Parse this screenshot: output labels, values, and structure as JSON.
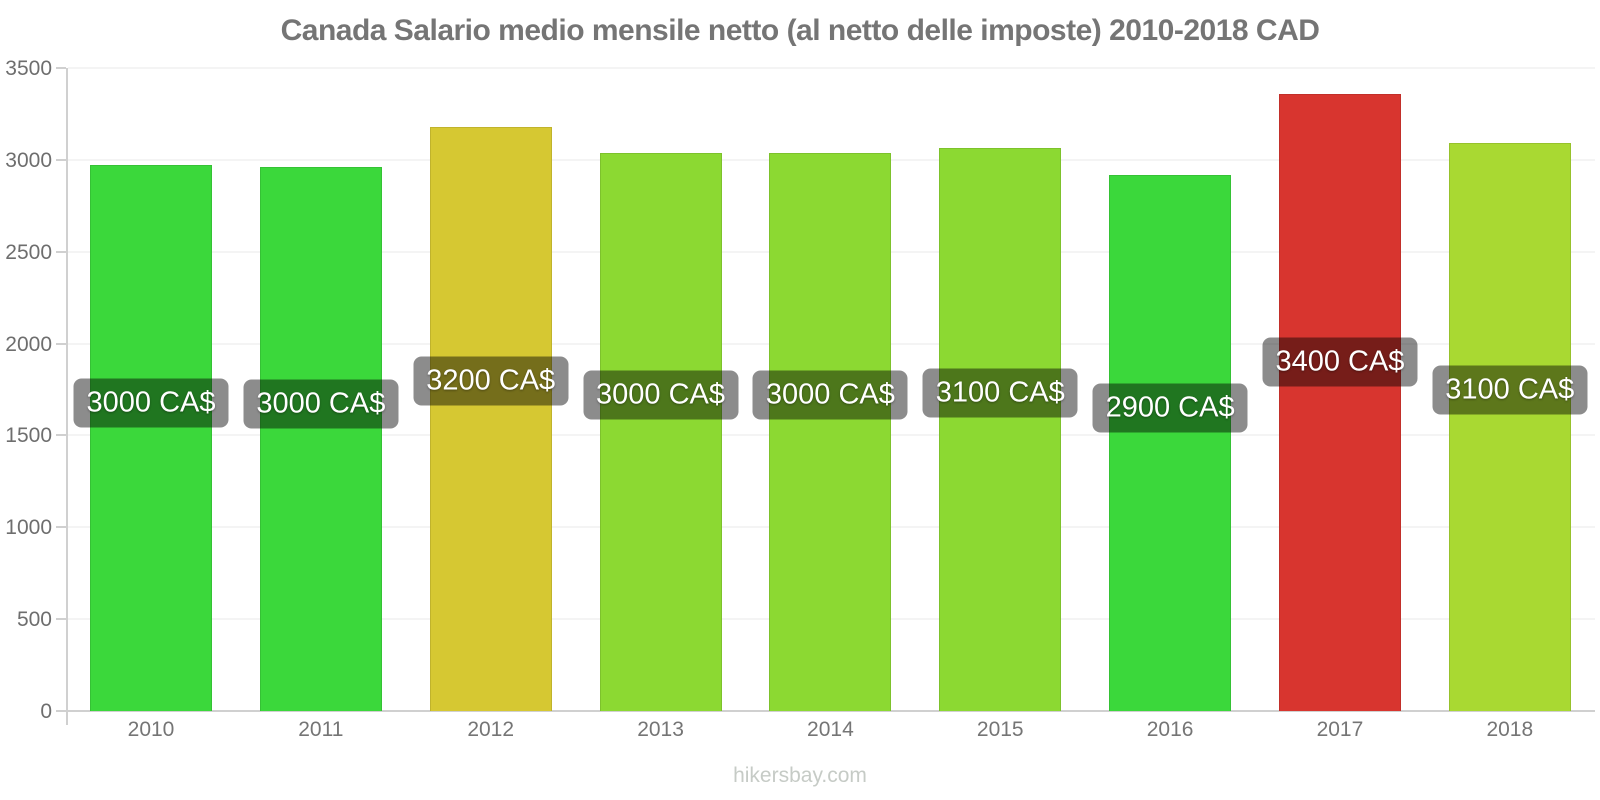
{
  "title": "Canada Salario medio mensile netto (al netto delle imposte) 2010-2018 CAD",
  "watermark": "hikersbay.com",
  "colors": {
    "title_text": "#757575",
    "axis_line": "#d0d0d0",
    "tick_text": "#6e6e6e",
    "bar_label_background": "rgba(0,0,0,0.45)",
    "bar_label_text": "#ffffff",
    "watermark_text": "#c6cbc6",
    "bright_green": "#3bd83b",
    "mustard_yellow": "#d6c832",
    "yellow_green": "#8cd932",
    "light_yellow_green": "#a9d932",
    "red": "#d8352f"
  },
  "chart_data": {
    "type": "bar",
    "title": "Canada Salario medio mensile netto (al netto delle imposte) 2010-2018 CAD",
    "xlabel": "",
    "ylabel": "",
    "ylim": [
      0,
      3500
    ],
    "yticks": [
      0,
      500,
      1000,
      1500,
      2000,
      2500,
      3000,
      3500
    ],
    "grid": true,
    "legend": "none",
    "currency": "CAD",
    "categories": [
      "2010",
      "2011",
      "2012",
      "2013",
      "2014",
      "2015",
      "2016",
      "2017",
      "2018"
    ],
    "values": [
      2970,
      2960,
      3180,
      3040,
      3040,
      3065,
      2920,
      3360,
      3090
    ],
    "bar_labels": [
      "3000 CA$",
      "3000 CA$",
      "3200 CA$",
      "3000 CA$",
      "3000 CA$",
      "3100 CA$",
      "2900 CA$",
      "3400 CA$",
      "3100 CA$"
    ],
    "bar_colors": [
      "#3bd83b",
      "#3bd83b",
      "#d6c832",
      "#8cd932",
      "#8cd932",
      "#8cd932",
      "#3bd83b",
      "#d8352f",
      "#a9d932"
    ]
  }
}
